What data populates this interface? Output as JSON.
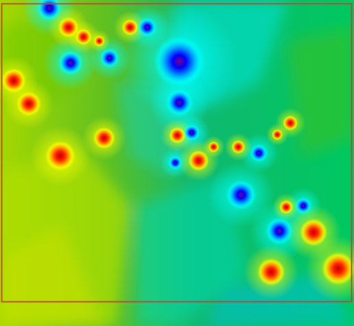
{
  "map": {
    "kind": "interpolated-anomaly-heatmap",
    "colormap": [
      "#0000ff",
      "#00ffff",
      "#00c000",
      "#ffff00",
      "#ff0000",
      "#800000"
    ],
    "background_gradient": {
      "west": "#a6d800",
      "center": "#10b870",
      "east": "#00d070"
    },
    "extent_frame": {
      "color": "#c0403a"
    },
    "anomalies": [
      {
        "id": "b01",
        "level": "low",
        "color": "#0000ff"
      },
      {
        "id": "b02",
        "level": "low",
        "color": "#0000ff"
      },
      {
        "id": "b03",
        "level": "low",
        "color": "#0000ff"
      },
      {
        "id": "b04",
        "level": "low",
        "color": "#0000ff"
      },
      {
        "id": "b05",
        "level": "low",
        "color": "#0000ff"
      },
      {
        "id": "b06",
        "level": "low",
        "color": "#0000ff"
      },
      {
        "id": "b07",
        "level": "low",
        "color": "#0000ff"
      },
      {
        "id": "b08",
        "level": "low",
        "color": "#0000ff"
      },
      {
        "id": "b09",
        "level": "low",
        "color": "#0000ff"
      },
      {
        "id": "b10",
        "level": "low",
        "color": "#0000ff"
      },
      {
        "id": "b11",
        "level": "low",
        "color": "#0000ff"
      },
      {
        "id": "b12",
        "level": "low",
        "color": "#0000ff"
      },
      {
        "id": "r01",
        "level": "high",
        "color": "#ff0000"
      },
      {
        "id": "r02",
        "level": "high",
        "color": "#ff0000"
      },
      {
        "id": "r03",
        "level": "high",
        "color": "#ff0000"
      },
      {
        "id": "r04",
        "level": "high",
        "color": "#ff0000"
      },
      {
        "id": "r05",
        "level": "high",
        "color": "#ff0000"
      },
      {
        "id": "r06",
        "level": "high",
        "color": "#ff0000"
      },
      {
        "id": "r07",
        "level": "high",
        "color": "#ff0000"
      },
      {
        "id": "r08",
        "level": "high",
        "color": "#ff0000"
      },
      {
        "id": "r09",
        "level": "high",
        "color": "#ff0000"
      },
      {
        "id": "r10",
        "level": "high",
        "color": "#ff0000"
      },
      {
        "id": "r11",
        "level": "high",
        "color": "#ff0000"
      },
      {
        "id": "r12",
        "level": "high",
        "color": "#ff0000"
      },
      {
        "id": "r13",
        "level": "high",
        "color": "#ff0000"
      },
      {
        "id": "r14",
        "level": "high",
        "color": "#ff0000"
      },
      {
        "id": "r15",
        "level": "high",
        "color": "#ff0000"
      },
      {
        "id": "r16",
        "level": "high",
        "color": "#ff0000"
      },
      {
        "id": "r17",
        "level": "high",
        "color": "#ff0000"
      },
      {
        "id": "r18",
        "level": "high",
        "color": "#ff0000"
      }
    ]
  }
}
